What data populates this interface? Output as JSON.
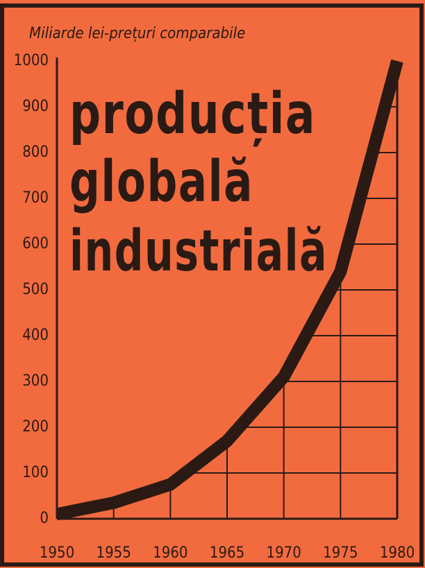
{
  "chart_data": {
    "type": "line",
    "title_lines": [
      "producția",
      "globală",
      "industrială"
    ],
    "y_axis_label": "Miliarde lei-prețuri comparabile",
    "x": [
      1950,
      1955,
      1960,
      1965,
      1970,
      1975,
      1980
    ],
    "series": [
      {
        "name": "producția globală industrială",
        "color": "#2b1a14",
        "values": [
          10,
          35,
          75,
          170,
          310,
          540,
          1000
        ]
      }
    ],
    "xlim": [
      1950,
      1980
    ],
    "xticks": [
      1950,
      1955,
      1960,
      1965,
      1970,
      1975,
      1980
    ],
    "ylim": [
      0,
      1000
    ],
    "yticks": [
      0,
      100,
      200,
      300,
      400,
      500,
      600,
      700,
      800,
      900,
      1000
    ],
    "grid": true
  }
}
